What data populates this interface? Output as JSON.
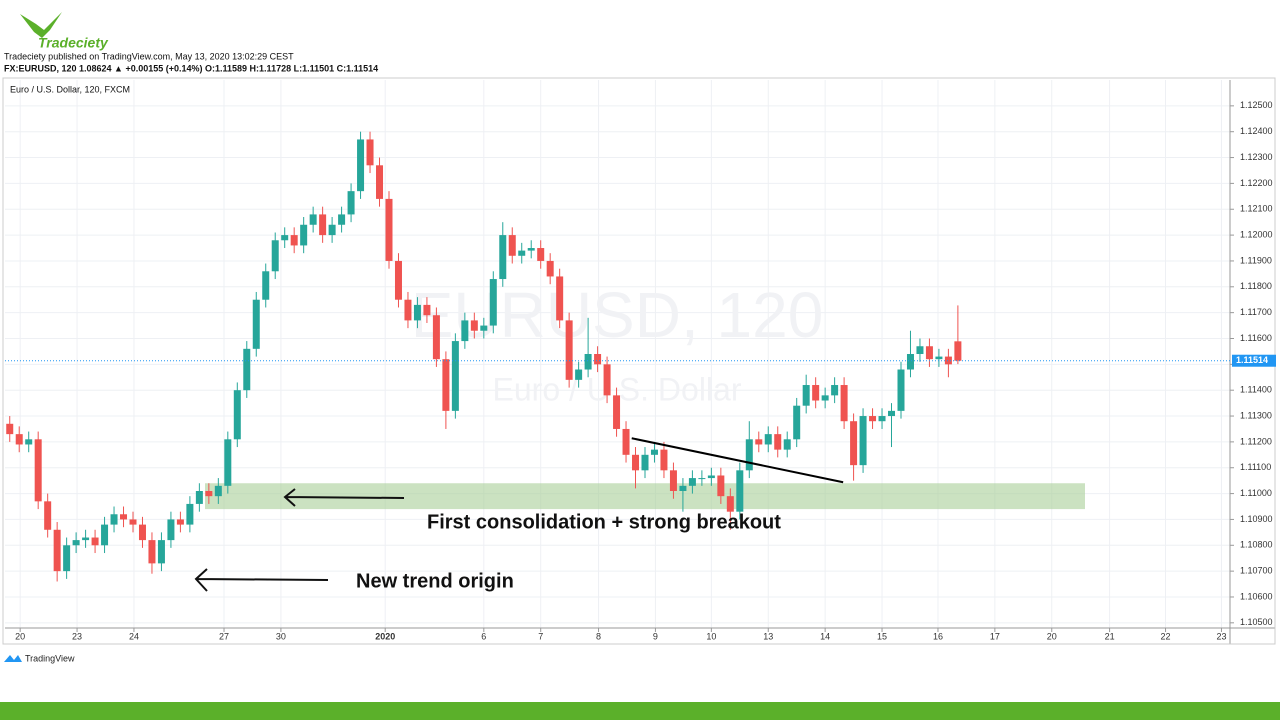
{
  "brand": "Tradeciety",
  "published": "Tradeciety published on TradingView.com, May 13, 2020 13:02:29 CEST",
  "symbol_line": "FX:EURUSD, 120 1.08624 ▲ +0.00155 (+0.14%) O:1.11589 H:1.11728 L:1.11501 C:1.11514",
  "footer": "TradingView",
  "chart_data": {
    "type": "candlestick",
    "legend": "Euro / U.S. Dollar, 120, FXCM",
    "watermark": [
      "EURUSD, 120",
      "Euro / U.S. Dollar"
    ],
    "up_color": "#26a69a",
    "down_color": "#ef5350",
    "open": [
      1.1127,
      1.1123,
      1.1119,
      1.1121,
      1.1097,
      1.1086,
      1.107,
      1.108,
      1.1082,
      1.1083,
      1.108,
      1.1088,
      1.1092,
      1.109,
      1.1088,
      1.1082,
      1.1073,
      1.1082,
      1.109,
      1.1088,
      1.1096,
      1.1101,
      1.1099,
      1.1103,
      1.1121,
      1.114,
      1.1156,
      1.1175,
      1.1186,
      1.1198,
      1.12,
      1.1196,
      1.1204,
      1.1208,
      1.12,
      1.1204,
      1.1208,
      1.1217,
      1.1237,
      1.1227,
      1.1214,
      1.119,
      1.1175,
      1.1167,
      1.1173,
      1.1169,
      1.1152,
      1.1132,
      1.1159,
      1.1167,
      1.1163,
      1.1165,
      1.1183,
      1.12,
      1.1192,
      1.1194,
      1.1195,
      1.119,
      1.1184,
      1.1167,
      1.1144,
      1.1148,
      1.1154,
      1.115,
      1.1138,
      1.1125,
      1.1115,
      1.1109,
      1.1115,
      1.1117,
      1.1109,
      1.1101,
      1.1103,
      1.1106,
      1.1106,
      1.1107,
      1.1099,
      1.1093,
      1.1109,
      1.1121,
      1.1119,
      1.1123,
      1.1117,
      1.1121,
      1.1134,
      1.1142,
      1.1136,
      1.1138,
      1.1142,
      1.1128,
      1.1111,
      1.113,
      1.1128,
      1.113,
      1.1132,
      1.1148,
      1.1154,
      1.1157,
      1.1152,
      1.1153,
      1.11589
    ],
    "high": [
      1.113,
      1.1126,
      1.1124,
      1.1124,
      1.11,
      1.1089,
      1.1083,
      1.1085,
      1.1086,
      1.1086,
      1.1091,
      1.1095,
      1.1095,
      1.1093,
      1.1091,
      1.1085,
      1.1085,
      1.1093,
      1.1093,
      1.1099,
      1.1104,
      1.1104,
      1.1106,
      1.1124,
      1.1143,
      1.1159,
      1.1178,
      1.1189,
      1.1201,
      1.1203,
      1.1203,
      1.1207,
      1.1211,
      1.1211,
      1.1207,
      1.1211,
      1.122,
      1.124,
      1.124,
      1.123,
      1.1217,
      1.1193,
      1.1178,
      1.1176,
      1.1176,
      1.1172,
      1.1155,
      1.1162,
      1.117,
      1.117,
      1.1168,
      1.1186,
      1.1205,
      1.1203,
      1.1197,
      1.1198,
      1.1198,
      1.1193,
      1.1187,
      1.117,
      1.1151,
      1.1168,
      1.1157,
      1.1153,
      1.1141,
      1.1128,
      1.1118,
      1.1118,
      1.112,
      1.112,
      1.1112,
      1.1106,
      1.1109,
      1.1109,
      1.111,
      1.111,
      1.1102,
      1.1112,
      1.1128,
      1.1124,
      1.1126,
      1.1126,
      1.1124,
      1.1137,
      1.1146,
      1.1145,
      1.1141,
      1.1145,
      1.1145,
      1.1131,
      1.1133,
      1.1133,
      1.1133,
      1.1135,
      1.1151,
      1.1163,
      1.116,
      1.116,
      1.1156,
      1.1156,
      1.11728
    ],
    "low": [
      1.112,
      1.1116,
      1.1116,
      1.1094,
      1.1083,
      1.1066,
      1.1067,
      1.1077,
      1.1079,
      1.1077,
      1.1077,
      1.1085,
      1.1087,
      1.1085,
      1.1079,
      1.1069,
      1.107,
      1.1079,
      1.1085,
      1.1085,
      1.1093,
      1.1096,
      1.1096,
      1.11,
      1.1118,
      1.1137,
      1.1153,
      1.1172,
      1.1183,
      1.1195,
      1.1193,
      1.1193,
      1.1201,
      1.1197,
      1.1197,
      1.1201,
      1.1205,
      1.1214,
      1.1224,
      1.1211,
      1.1187,
      1.1172,
      1.1164,
      1.1164,
      1.1166,
      1.1149,
      1.1125,
      1.1129,
      1.1156,
      1.116,
      1.116,
      1.1162,
      1.118,
      1.1189,
      1.1189,
      1.1191,
      1.1187,
      1.1181,
      1.1164,
      1.1141,
      1.1141,
      1.1145,
      1.1147,
      1.1135,
      1.1122,
      1.1112,
      1.1102,
      1.1106,
      1.1112,
      1.1106,
      1.1098,
      1.1093,
      1.11,
      1.1103,
      1.1103,
      1.1096,
      1.1086,
      1.109,
      1.1106,
      1.1116,
      1.1116,
      1.1114,
      1.1114,
      1.1118,
      1.1131,
      1.1133,
      1.1133,
      1.1135,
      1.1125,
      1.1105,
      1.1108,
      1.1125,
      1.1125,
      1.1118,
      1.1129,
      1.1145,
      1.1151,
      1.1149,
      1.1149,
      1.1145,
      1.11501
    ],
    "close": [
      1.1123,
      1.1119,
      1.1121,
      1.1097,
      1.1086,
      1.107,
      1.108,
      1.1082,
      1.1083,
      1.108,
      1.1088,
      1.1092,
      1.109,
      1.1088,
      1.1082,
      1.1073,
      1.1082,
      1.109,
      1.1088,
      1.1096,
      1.1101,
      1.1099,
      1.1103,
      1.1121,
      1.114,
      1.1156,
      1.1175,
      1.1186,
      1.1198,
      1.12,
      1.1196,
      1.1204,
      1.1208,
      1.12,
      1.1204,
      1.1208,
      1.1217,
      1.1237,
      1.1227,
      1.1214,
      1.119,
      1.1175,
      1.1167,
      1.1173,
      1.1169,
      1.1152,
      1.1132,
      1.1159,
      1.1167,
      1.1163,
      1.1165,
      1.1183,
      1.12,
      1.1192,
      1.1194,
      1.1195,
      1.119,
      1.1184,
      1.1167,
      1.1144,
      1.1148,
      1.1154,
      1.115,
      1.1138,
      1.1125,
      1.1115,
      1.1109,
      1.1115,
      1.1117,
      1.1109,
      1.1101,
      1.1103,
      1.1106,
      1.1106,
      1.1107,
      1.1099,
      1.1093,
      1.1109,
      1.1121,
      1.1119,
      1.1123,
      1.1117,
      1.1121,
      1.1134,
      1.1142,
      1.1136,
      1.1138,
      1.1142,
      1.1128,
      1.1111,
      1.113,
      1.1128,
      1.113,
      1.1132,
      1.1148,
      1.1154,
      1.1157,
      1.1152,
      1.1153,
      1.115,
      1.11514
    ],
    "ylim": [
      1.1048,
      1.126
    ],
    "yticks": [
      {
        "value": 1.105,
        "label": "1.10500"
      },
      {
        "value": 1.106,
        "label": "1.10600"
      },
      {
        "value": 1.107,
        "label": "1.10700"
      },
      {
        "value": 1.108,
        "label": "1.10800"
      },
      {
        "value": 1.109,
        "label": "1.10900"
      },
      {
        "value": 1.11,
        "label": "1.11000"
      },
      {
        "value": 1.111,
        "label": "1.11100"
      },
      {
        "value": 1.112,
        "label": "1.11200"
      },
      {
        "value": 1.113,
        "label": "1.11300"
      },
      {
        "value": 1.114,
        "label": "1.11400"
      },
      {
        "value": 1.115,
        "label": "1.11500"
      },
      {
        "value": 1.116,
        "label": "1.11600"
      },
      {
        "value": 1.117,
        "label": "1.11700"
      },
      {
        "value": 1.118,
        "label": "1.11800"
      },
      {
        "value": 1.119,
        "label": "1.11900"
      },
      {
        "value": 1.12,
        "label": "1.12000"
      },
      {
        "value": 1.121,
        "label": "1.12100"
      },
      {
        "value": 1.122,
        "label": "1.12200"
      },
      {
        "value": 1.123,
        "label": "1.12300"
      },
      {
        "value": 1.124,
        "label": "1.12400"
      },
      {
        "value": 1.125,
        "label": "1.12500"
      }
    ],
    "xlim": [
      0,
      129.2
    ],
    "xticks": [
      {
        "value": 1.6,
        "label": "20"
      },
      {
        "value": 7.6,
        "label": "23"
      },
      {
        "value": 13.6,
        "label": "24"
      },
      {
        "value": 23.1,
        "label": "27"
      },
      {
        "value": 29.1,
        "label": "30"
      },
      {
        "value": 40.1,
        "label": "2020"
      },
      {
        "value": 50.5,
        "label": "6"
      },
      {
        "value": 56.5,
        "label": "7"
      },
      {
        "value": 62.6,
        "label": "8"
      },
      {
        "value": 68.6,
        "label": "9"
      },
      {
        "value": 74.5,
        "label": "10"
      },
      {
        "value": 80.5,
        "label": "13"
      },
      {
        "value": 86.5,
        "label": "14"
      },
      {
        "value": 92.5,
        "label": "15"
      },
      {
        "value": 98.4,
        "label": "16"
      },
      {
        "value": 104.4,
        "label": "17"
      },
      {
        "value": 110.4,
        "label": "20"
      },
      {
        "value": 116.5,
        "label": "21"
      },
      {
        "value": 122.4,
        "label": "22"
      },
      {
        "value": 128.3,
        "label": "23"
      }
    ],
    "grid": true,
    "last_price": 1.11514,
    "zone": [
      1.1094,
      1.1104
    ],
    "trendline": {
      "x": [
        66.1,
        88.4
      ],
      "y": [
        1.11214,
        1.11044
      ]
    },
    "annotations": [
      "First consolidation + strong breakout",
      "New trend origin"
    ]
  }
}
